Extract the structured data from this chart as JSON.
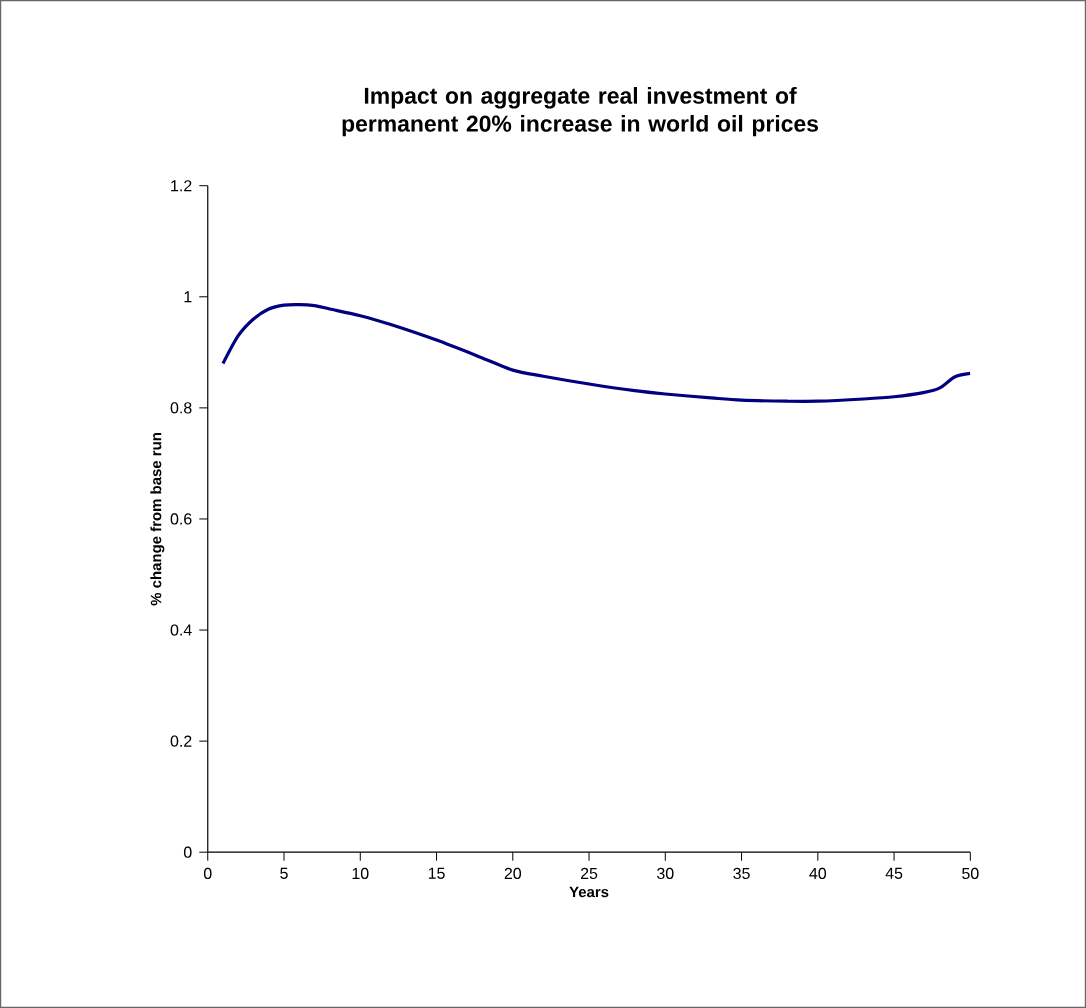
{
  "chart_data": {
    "type": "line",
    "title": "Impact on aggregate real investment of permanent 20% increase in world oil prices",
    "xlabel": "Years",
    "ylabel": "% change from base run",
    "series": [
      {
        "color": "#000080",
        "x": [
          1,
          2,
          3,
          4,
          5,
          6,
          7,
          8,
          10,
          12,
          15,
          18,
          20,
          22,
          25,
          28,
          30,
          33,
          35,
          38,
          40,
          43,
          45,
          47,
          48,
          49,
          50
        ],
        "values": [
          0.88,
          0.93,
          0.96,
          0.978,
          0.985,
          0.986,
          0.984,
          0.978,
          0.966,
          0.95,
          0.922,
          0.89,
          0.868,
          0.857,
          0.843,
          0.831,
          0.825,
          0.818,
          0.814,
          0.812,
          0.812,
          0.816,
          0.82,
          0.828,
          0.836,
          0.856,
          0.862
        ]
      }
    ],
    "xlim": [
      0,
      50
    ],
    "ylim": [
      0,
      1.2
    ],
    "xticks": [
      0,
      5,
      10,
      15,
      20,
      25,
      30,
      35,
      40,
      45,
      50
    ],
    "yticks": [
      0,
      0.2,
      0.4,
      0.6,
      0.8,
      1,
      1.2
    ],
    "marker": "none",
    "line_style": "solid"
  }
}
